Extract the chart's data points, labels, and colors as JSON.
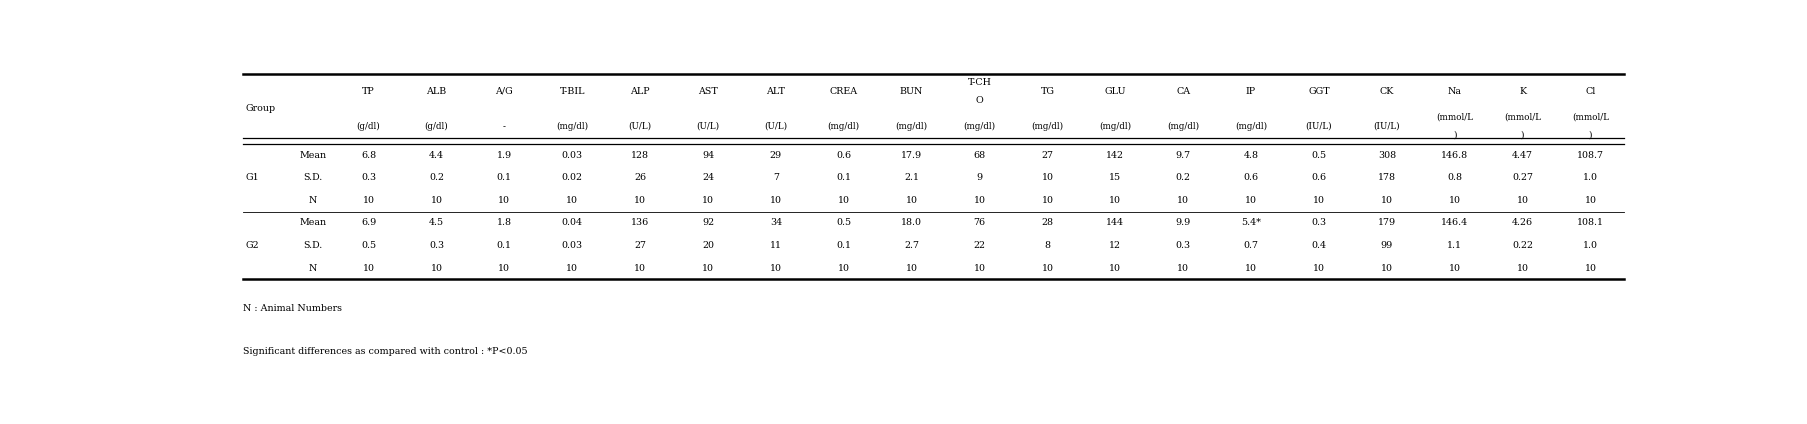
{
  "col_names": [
    "TP",
    "ALB",
    "A/G",
    "T-BIL",
    "ALP",
    "AST",
    "ALT",
    "CREA",
    "BUN",
    "T-CHO",
    "TG",
    "GLU",
    "CA",
    "IP",
    "GGT",
    "CK",
    "Na",
    "K",
    "Cl"
  ],
  "col_units": [
    "(g/dl)",
    "(g/dl)",
    "-",
    "(mg/dl)",
    "(U/L)",
    "(U/L)",
    "(U/L)",
    "(mg/dl)",
    "(mg/dl)",
    "(mg/dl)",
    "(mg/dl)",
    "(mg/dl)",
    "(mg/dl)",
    "(mg/dl)",
    "(IU/L)",
    "(IU/L)",
    "(mmol/L )",
    "(mmol/L )",
    "(mmol/L )"
  ],
  "groups": [
    {
      "group": "G1",
      "rows": [
        {
          "label": "Mean",
          "values": [
            "6.8",
            "4.4",
            "1.9",
            "0.03",
            "128",
            "94",
            "29",
            "0.6",
            "17.9",
            "68",
            "27",
            "142",
            "9.7",
            "4.8",
            "0.5",
            "308",
            "146.8",
            "4.47",
            "108.7"
          ]
        },
        {
          "label": "S.D.",
          "values": [
            "0.3",
            "0.2",
            "0.1",
            "0.02",
            "26",
            "24",
            "7",
            "0.1",
            "2.1",
            "9",
            "10",
            "15",
            "0.2",
            "0.6",
            "0.6",
            "178",
            "0.8",
            "0.27",
            "1.0"
          ]
        },
        {
          "label": "N",
          "values": [
            "10",
            "10",
            "10",
            "10",
            "10",
            "10",
            "10",
            "10",
            "10",
            "10",
            "10",
            "10",
            "10",
            "10",
            "10",
            "10",
            "10",
            "10",
            "10"
          ]
        }
      ]
    },
    {
      "group": "G2",
      "rows": [
        {
          "label": "Mean",
          "values": [
            "6.9",
            "4.5",
            "1.8",
            "0.04",
            "136",
            "92",
            "34",
            "0.5",
            "18.0",
            "76",
            "28",
            "144",
            "9.9",
            "5.4*",
            "0.3",
            "179",
            "146.4",
            "4.26",
            "108.1"
          ]
        },
        {
          "label": "S.D.",
          "values": [
            "0.5",
            "0.3",
            "0.1",
            "0.03",
            "27",
            "20",
            "11",
            "0.1",
            "2.7",
            "22",
            "8",
            "12",
            "0.3",
            "0.7",
            "0.4",
            "99",
            "1.1",
            "0.22",
            "1.0"
          ]
        },
        {
          "label": "N",
          "values": [
            "10",
            "10",
            "10",
            "10",
            "10",
            "10",
            "10",
            "10",
            "10",
            "10",
            "10",
            "10",
            "10",
            "10",
            "10",
            "10",
            "10",
            "10",
            "10"
          ]
        }
      ]
    }
  ],
  "footnotes": [
    "N : Animal Numbers",
    "Significant differences as compared with control : *P<0.05"
  ]
}
